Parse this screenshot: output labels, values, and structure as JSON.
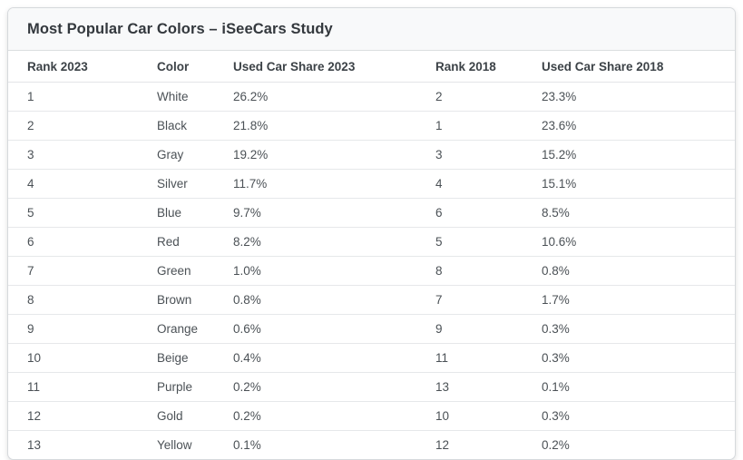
{
  "card": {
    "title": "Most Popular Car Colors – iSeeCars Study"
  },
  "table": {
    "columns": [
      "Rank 2023",
      "Color",
      "Used Car Share 2023",
      "Rank 2018",
      "Used Car Share 2018"
    ],
    "rows": [
      [
        "1",
        "White",
        "26.2%",
        "2",
        "23.3%"
      ],
      [
        "2",
        "Black",
        "21.8%",
        "1",
        "23.6%"
      ],
      [
        "3",
        "Gray",
        "19.2%",
        "3",
        "15.2%"
      ],
      [
        "4",
        "Silver",
        "11.7%",
        "4",
        "15.1%"
      ],
      [
        "5",
        "Blue",
        "9.7%",
        "6",
        "8.5%"
      ],
      [
        "6",
        "Red",
        "8.2%",
        "5",
        "10.6%"
      ],
      [
        "7",
        "Green",
        "1.0%",
        "8",
        "0.8%"
      ],
      [
        "8",
        "Brown",
        "0.8%",
        "7",
        "1.7%"
      ],
      [
        "9",
        "Orange",
        "0.6%",
        "9",
        "0.3%"
      ],
      [
        "10",
        "Beige",
        "0.4%",
        "11",
        "0.3%"
      ],
      [
        "11",
        "Purple",
        "0.2%",
        "13",
        "0.1%"
      ],
      [
        "12",
        "Gold",
        "0.2%",
        "10",
        "0.3%"
      ],
      [
        "13",
        "Yellow",
        "0.1%",
        "12",
        "0.2%"
      ]
    ]
  },
  "chart_data": {
    "type": "table",
    "title": "Most Popular Car Colors – iSeeCars Study",
    "columns": [
      "Rank 2023",
      "Color",
      "Used Car Share 2023",
      "Rank 2018",
      "Used Car Share 2018"
    ],
    "rows": [
      {
        "rank_2023": 1,
        "color": "White",
        "used_car_share_2023": "26.2%",
        "rank_2018": 2,
        "used_car_share_2018": "23.3%"
      },
      {
        "rank_2023": 2,
        "color": "Black",
        "used_car_share_2023": "21.8%",
        "rank_2018": 1,
        "used_car_share_2018": "23.6%"
      },
      {
        "rank_2023": 3,
        "color": "Gray",
        "used_car_share_2023": "19.2%",
        "rank_2018": 3,
        "used_car_share_2018": "15.2%"
      },
      {
        "rank_2023": 4,
        "color": "Silver",
        "used_car_share_2023": "11.7%",
        "rank_2018": 4,
        "used_car_share_2018": "15.1%"
      },
      {
        "rank_2023": 5,
        "color": "Blue",
        "used_car_share_2023": "9.7%",
        "rank_2018": 6,
        "used_car_share_2018": "8.5%"
      },
      {
        "rank_2023": 6,
        "color": "Red",
        "used_car_share_2023": "8.2%",
        "rank_2018": 5,
        "used_car_share_2018": "10.6%"
      },
      {
        "rank_2023": 7,
        "color": "Green",
        "used_car_share_2023": "1.0%",
        "rank_2018": 8,
        "used_car_share_2018": "0.8%"
      },
      {
        "rank_2023": 8,
        "color": "Brown",
        "used_car_share_2023": "0.8%",
        "rank_2018": 7,
        "used_car_share_2018": "1.7%"
      },
      {
        "rank_2023": 9,
        "color": "Orange",
        "used_car_share_2023": "0.6%",
        "rank_2018": 9,
        "used_car_share_2018": "0.3%"
      },
      {
        "rank_2023": 10,
        "color": "Beige",
        "used_car_share_2023": "0.4%",
        "rank_2018": 11,
        "used_car_share_2018": "0.3%"
      },
      {
        "rank_2023": 11,
        "color": "Purple",
        "used_car_share_2023": "0.2%",
        "rank_2018": 13,
        "used_car_share_2018": "0.1%"
      },
      {
        "rank_2023": 12,
        "color": "Gold",
        "used_car_share_2023": "0.2%",
        "rank_2018": 10,
        "used_car_share_2018": "0.3%"
      },
      {
        "rank_2023": 13,
        "color": "Yellow",
        "used_car_share_2023": "0.1%",
        "rank_2018": 12,
        "used_car_share_2018": "0.2%"
      }
    ]
  },
  "colors": {
    "title_bar_bg": "#f8f9fa",
    "card_border": "#d6d9dc",
    "row_border": "#e6e8ea",
    "title_text": "#33383d",
    "header_text": "#3c4247",
    "body_text": "#4b5156"
  }
}
